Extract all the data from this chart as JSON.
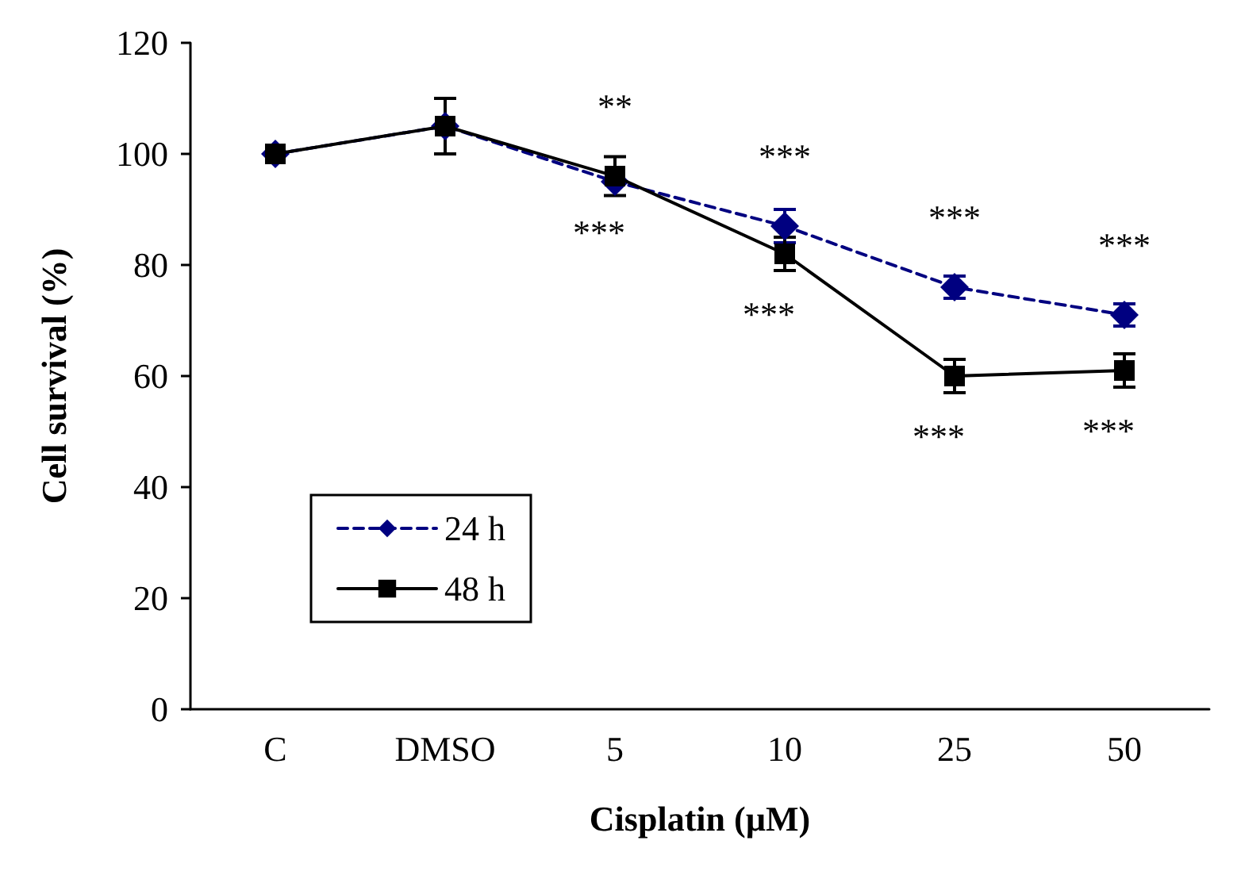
{
  "chart_data": {
    "type": "line",
    "xlabel": "Cisplatin (µM)",
    "ylabel": "Cell survival (%)",
    "categories": [
      "C",
      "DMSO",
      "5",
      "10",
      "25",
      "50"
    ],
    "series": [
      {
        "name": "24 h",
        "color": "#000080",
        "marker": "diamond",
        "line_style": "dashed",
        "values": [
          100,
          105,
          95,
          87,
          76,
          71
        ],
        "errors": [
          null,
          null,
          null,
          3,
          2,
          2
        ]
      },
      {
        "name": "48 h",
        "color": "#000000",
        "marker": "square",
        "line_style": "solid",
        "values": [
          100,
          105,
          96,
          82,
          60,
          61
        ],
        "errors": [
          null,
          5,
          3.5,
          3,
          3,
          3
        ]
      }
    ],
    "annotations": [
      "**",
      "***",
      "***",
      "***",
      "***",
      "***",
      "***",
      "***"
    ],
    "ylim": [
      0,
      120
    ],
    "yticks": [
      0,
      20,
      40,
      60,
      80,
      100,
      120
    ],
    "grid": false,
    "legend": "bottom left"
  }
}
